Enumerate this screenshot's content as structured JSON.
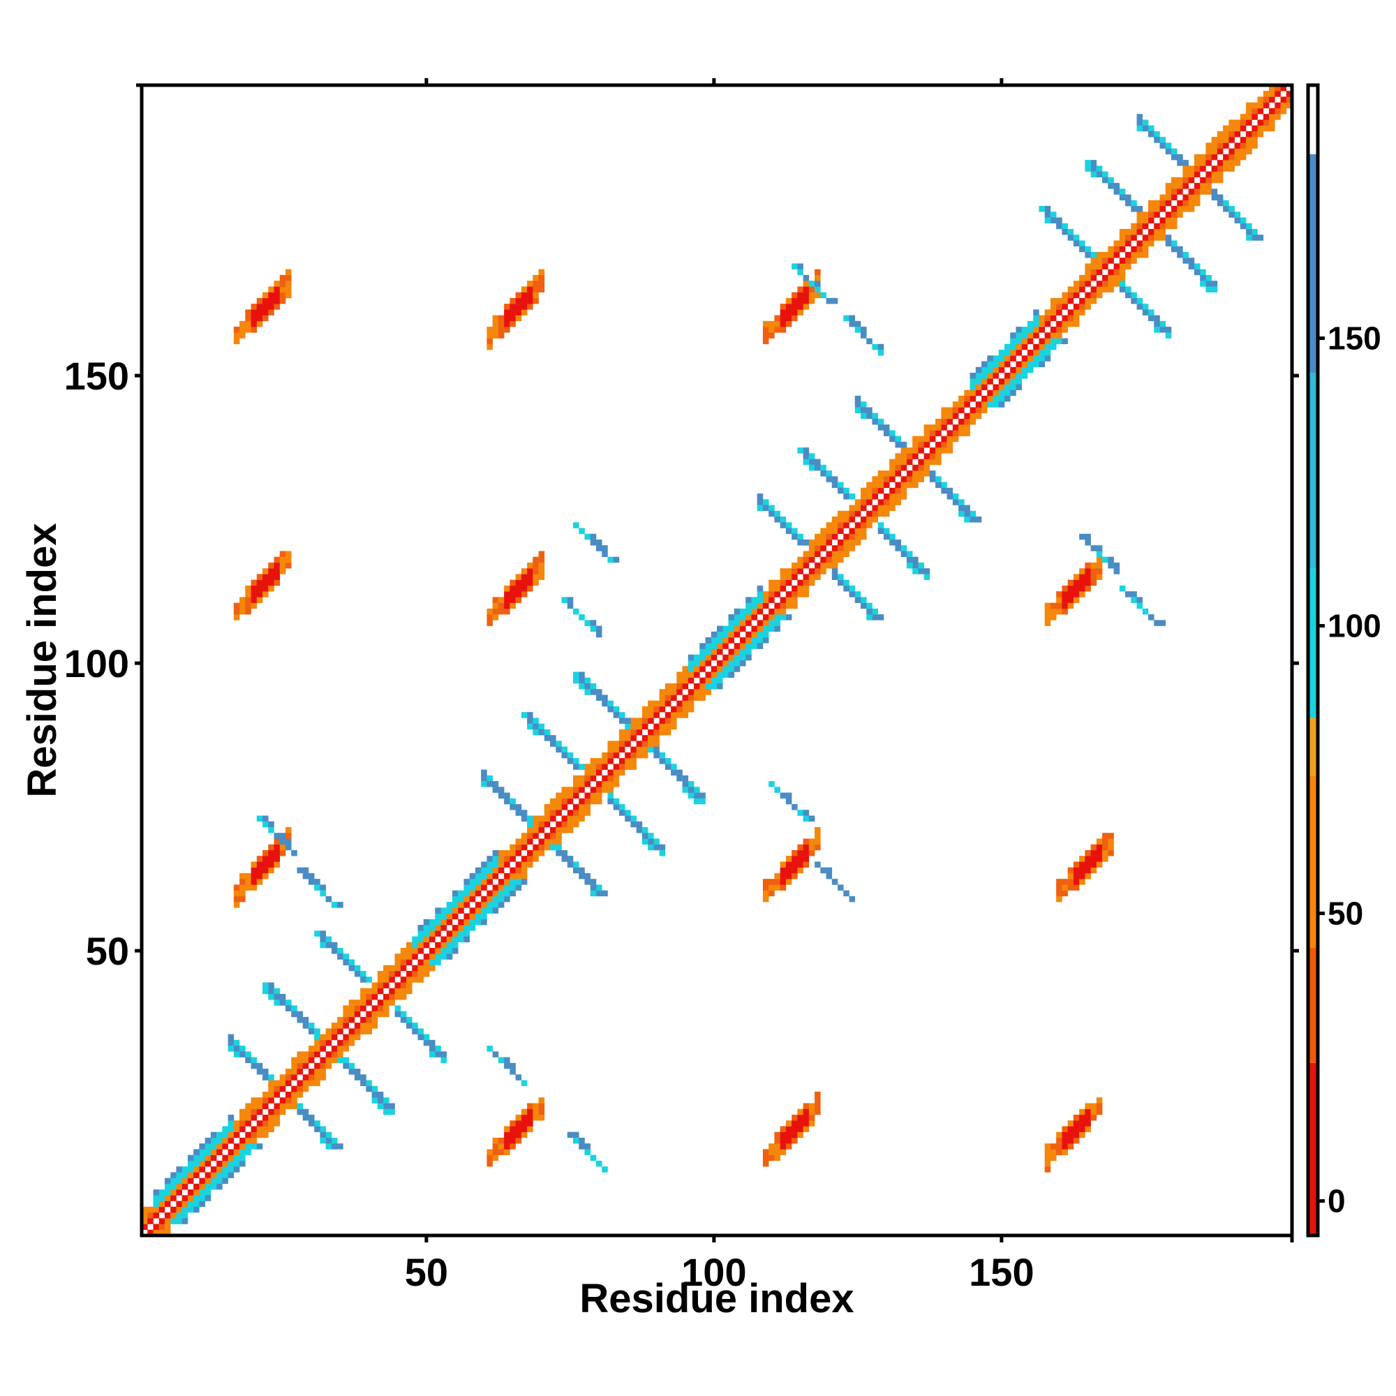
{
  "chart_data": {
    "type": "heatmap",
    "title": "",
    "xlabel": "Residue index",
    "ylabel": "Residue index",
    "xlim": [
      1,
      200
    ],
    "ylim": [
      1,
      200
    ],
    "xticks": [
      50,
      100,
      150
    ],
    "yticks": [
      50,
      100,
      150
    ],
    "colorbar": {
      "ticks": [
        0,
        50,
        100,
        150
      ],
      "range": [
        -6,
        194
      ],
      "bands": [
        {
          "from": -6,
          "to": 24,
          "color": "#e8120c"
        },
        {
          "from": 24,
          "to": 44,
          "color": "#f05a0a"
        },
        {
          "from": 44,
          "to": 74,
          "color": "#f5870a"
        },
        {
          "from": 74,
          "to": 84,
          "color": "#f0a020"
        },
        {
          "from": 84,
          "to": 110,
          "color": "#19d3e0"
        },
        {
          "from": 110,
          "to": 144,
          "color": "#31b9d6"
        },
        {
          "from": 144,
          "to": 182,
          "color": "#4a8cc4"
        },
        {
          "from": 182,
          "to": 194,
          "color": "#ffffff"
        }
      ]
    },
    "colors": {
      "red": "#e8120c",
      "orange": "#f5870a",
      "darkorange": "#f06010",
      "cyan": "#19d3e0",
      "steelblue": "#4a8cc4"
    },
    "diagonal": {
      "start": 1,
      "end": 200,
      "halfwidth": 2
    },
    "helices": [
      {
        "start": 3,
        "end": 16,
        "color": "cyan"
      },
      {
        "start": 48,
        "end": 62,
        "color": "cyan"
      },
      {
        "start": 96,
        "end": 108,
        "color": "cyan"
      },
      {
        "start": 145,
        "end": 156,
        "color": "cyan"
      }
    ],
    "strand_pairs": [
      {
        "center": 25,
        "len": 9
      },
      {
        "center": 33,
        "len": 10
      },
      {
        "center": 42,
        "len": 10
      },
      {
        "center": 70,
        "len": 10
      },
      {
        "center": 79,
        "len": 11
      },
      {
        "center": 87,
        "len": 10
      },
      {
        "center": 118,
        "len": 10
      },
      {
        "center": 126,
        "len": 10
      },
      {
        "center": 135,
        "len": 10
      },
      {
        "center": 168,
        "len": 10
      },
      {
        "center": 176,
        "len": 10
      },
      {
        "center": 184,
        "len": 10
      }
    ],
    "red_blobs": [
      {
        "x": 21,
        "y": 161
      },
      {
        "x": 113,
        "y": 161
      },
      {
        "x": 65,
        "y": 161
      },
      {
        "x": 65,
        "y": 112
      },
      {
        "x": 162,
        "y": 112
      },
      {
        "x": 21,
        "y": 64
      },
      {
        "x": 113,
        "y": 64
      },
      {
        "x": 65,
        "y": 18
      },
      {
        "x": 162,
        "y": 18
      },
      {
        "x": 164,
        "y": 64
      },
      {
        "x": 21,
        "y": 113
      },
      {
        "x": 113,
        "y": 18
      }
    ],
    "blue_streaks": [
      {
        "x": 28,
        "y": 64
      },
      {
        "x": 61,
        "y": 33
      },
      {
        "x": 75,
        "y": 18
      },
      {
        "x": 74,
        "y": 111
      },
      {
        "x": 123,
        "y": 160
      },
      {
        "x": 171,
        "y": 113
      },
      {
        "x": 164,
        "y": 122
      },
      {
        "x": 110,
        "y": 79
      },
      {
        "x": 118,
        "y": 65
      },
      {
        "x": 76,
        "y": 124
      },
      {
        "x": 114,
        "y": 169
      },
      {
        "x": 21,
        "y": 73
      }
    ]
  }
}
